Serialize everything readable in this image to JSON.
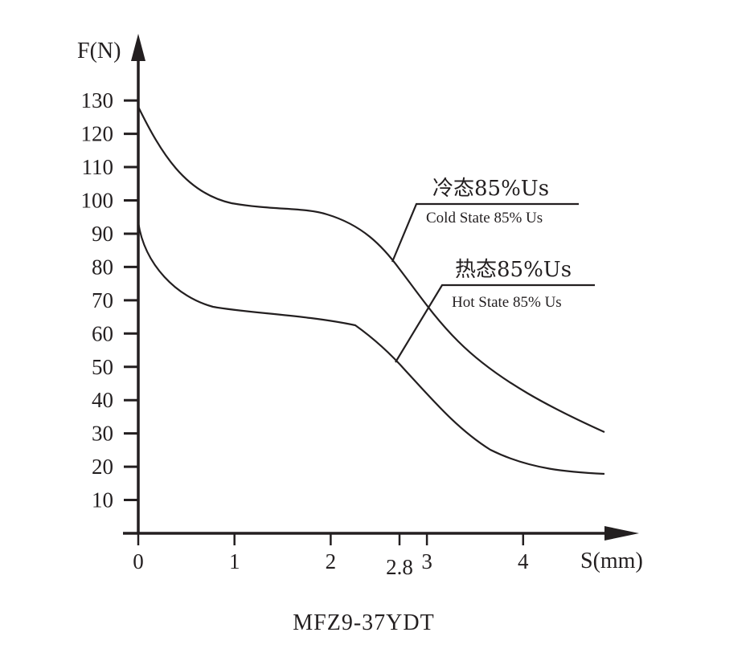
{
  "chart_data": {
    "type": "line",
    "title": "MFZ9-37YDT",
    "xlabel": "S(mm)",
    "ylabel": "F(N)",
    "xlim": [
      0,
      5
    ],
    "ylim": [
      0,
      140
    ],
    "x_ticks": [
      "0",
      "1",
      "2",
      "2.8",
      "3",
      "4"
    ],
    "y_ticks": [
      "10",
      "20",
      "30",
      "40",
      "50",
      "60",
      "70",
      "80",
      "90",
      "100",
      "110",
      "120",
      "130"
    ],
    "grid": false,
    "legend_position": "inline callouts",
    "series": [
      {
        "name": "冷态85%Us / Cold State 85% Us",
        "x": [
          0,
          0.25,
          0.5,
          0.75,
          1.0,
          1.5,
          2.0,
          2.25,
          2.5,
          2.8,
          3.0,
          3.5,
          4.0,
          4.5,
          4.85
        ],
        "y": [
          128,
          117,
          108,
          102,
          99,
          97,
          95,
          92,
          87,
          78,
          68,
          53,
          43,
          35,
          30
        ]
      },
      {
        "name": "热态85%Us / Hot State 85% Us",
        "x": [
          0,
          0.25,
          0.5,
          0.75,
          1.0,
          1.5,
          2.0,
          2.35,
          2.6,
          2.8,
          3.0,
          3.5,
          4.0,
          4.5,
          4.85
        ],
        "y": [
          93,
          81,
          74,
          69,
          67,
          66,
          64,
          62,
          57,
          52,
          46,
          33,
          25,
          21,
          18
        ]
      }
    ],
    "annotations": [
      {
        "cn": "冷态85%Us",
        "en": "Cold State 85% Us"
      },
      {
        "cn": "热态85%Us",
        "en": "Hot State 85% Us"
      }
    ]
  },
  "axis": {
    "y_title": "F(N)",
    "x_title": "S(mm)"
  },
  "labels": {
    "cold_cn": "冷态85%Us",
    "cold_en": "Cold State 85% Us",
    "hot_cn": "热态85%Us",
    "hot_en": "Hot State 85% Us"
  },
  "model": "MFZ9-37YDT",
  "colors": {
    "ink": "#231f20",
    "background": "#ffffff"
  }
}
